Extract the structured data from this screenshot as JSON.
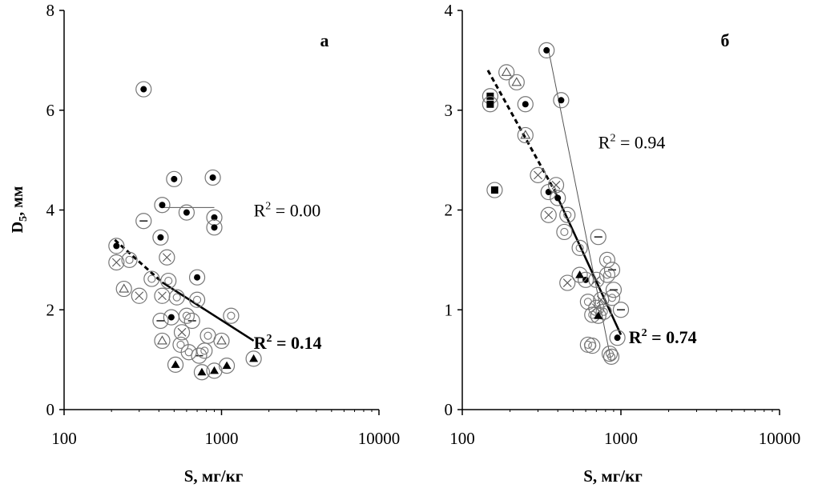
{
  "figure": {
    "ylabel_main": "D",
    "ylabel_sub": "5",
    "ylabel_rest": ", мм"
  },
  "chart_data": [
    {
      "type": "scatter",
      "panel_label": "а",
      "xlabel": "S, мг/кг",
      "xscale": "log",
      "xlim": [
        100,
        10000
      ],
      "xticks": [
        "100",
        "1000",
        "10000"
      ],
      "xtick_values": [
        100,
        1000,
        10000
      ],
      "ylim": [
        0,
        8
      ],
      "yticks": [
        "0",
        "2",
        "4",
        "6",
        "8"
      ],
      "ytick_values": [
        0,
        2,
        4,
        6,
        8
      ],
      "series": [
        {
          "marker": "dot",
          "points": [
            [
              320,
              6.42
            ],
            [
              500,
              4.62
            ],
            [
              880,
              4.65
            ],
            [
              420,
              4.1
            ],
            [
              600,
              3.95
            ],
            [
              900,
              3.85
            ],
            [
              900,
              3.65
            ],
            [
              410,
              3.45
            ],
            [
              700,
              2.65
            ],
            [
              480,
              1.85
            ],
            [
              215,
              3.28
            ]
          ]
        },
        {
          "marker": "minus",
          "points": [
            [
              320,
              3.78
            ],
            [
              410,
              1.78
            ],
            [
              650,
              1.78
            ],
            [
              720,
              1.08
            ]
          ]
        },
        {
          "marker": "x",
          "points": [
            [
              215,
              2.95
            ],
            [
              300,
              2.28
            ],
            [
              450,
              3.05
            ],
            [
              420,
              2.28
            ],
            [
              560,
              1.55
            ]
          ]
        },
        {
          "marker": "triangle",
          "points": [
            [
              240,
              2.42
            ],
            [
              420,
              1.38
            ],
            [
              1000,
              1.38
            ]
          ]
        },
        {
          "marker": "ring",
          "points": [
            [
              260,
              3.0
            ],
            [
              360,
              2.62
            ],
            [
              460,
              2.58
            ],
            [
              520,
              2.25
            ],
            [
              700,
              2.2
            ],
            [
              820,
              1.48
            ],
            [
              600,
              1.88
            ],
            [
              1150,
              1.88
            ],
            [
              550,
              1.3
            ],
            [
              620,
              1.15
            ],
            [
              780,
              1.18
            ]
          ]
        },
        {
          "marker": "filled-triangle",
          "points": [
            [
              510,
              0.9
            ],
            [
              750,
              0.75
            ],
            [
              900,
              0.78
            ],
            [
              1080,
              0.88
            ],
            [
              1600,
              1.02
            ]
          ]
        }
      ],
      "fits": [
        {
          "style": "dashed",
          "from": [
            210,
            3.4
          ],
          "to": [
            420,
            2.55
          ]
        },
        {
          "style": "solid",
          "from": [
            420,
            2.55
          ],
          "to": [
            1600,
            1.38
          ]
        },
        {
          "style": "thin",
          "from": [
            420,
            4.05
          ],
          "to": [
            900,
            4.05
          ]
        }
      ],
      "annotations": [
        {
          "base": "R",
          "sup": "2",
          "text": " = 0.00",
          "bold": false,
          "anchor": [
            1600,
            4.0
          ]
        },
        {
          "base": "R",
          "sup": "2",
          "text": " = 0.14",
          "bold": true,
          "anchor": [
            1600,
            1.35
          ]
        }
      ]
    },
    {
      "type": "scatter",
      "panel_label": "б",
      "xlabel": "S, мг/кг",
      "xscale": "log",
      "xlim": [
        100,
        10000
      ],
      "xticks": [
        "100",
        "1000",
        "10000"
      ],
      "xtick_values": [
        100,
        1000,
        10000
      ],
      "ylim": [
        0,
        4
      ],
      "yticks": [
        "0",
        "1",
        "2",
        "3",
        "4"
      ],
      "ytick_values": [
        0,
        1,
        2,
        3,
        4
      ],
      "series": [
        {
          "marker": "dot",
          "points": [
            [
              340,
              3.6
            ],
            [
              420,
              3.1
            ],
            [
              250,
              3.06
            ],
            [
              350,
              2.18
            ],
            [
              400,
              2.12
            ],
            [
              600,
              1.3
            ],
            [
              950,
              0.72
            ]
          ]
        },
        {
          "marker": "filled-square",
          "points": [
            [
              150,
              3.14
            ],
            [
              150,
              3.06
            ],
            [
              160,
              2.2
            ]
          ]
        },
        {
          "marker": "triangle",
          "points": [
            [
              190,
              3.38
            ],
            [
              220,
              3.28
            ],
            [
              250,
              2.75
            ]
          ]
        },
        {
          "marker": "x",
          "points": [
            [
              300,
              2.35
            ],
            [
              390,
              2.25
            ],
            [
              350,
              1.95
            ],
            [
              460,
              1.27
            ],
            [
              700,
              1.3
            ],
            [
              700,
              1.02
            ],
            [
              750,
              1.1
            ]
          ]
        },
        {
          "marker": "ring",
          "points": [
            [
              460,
              1.95
            ],
            [
              440,
              1.78
            ],
            [
              550,
              1.62
            ],
            [
              620,
              1.08
            ],
            [
              660,
              0.95
            ],
            [
              820,
              1.5
            ],
            [
              820,
              1.35
            ],
            [
              880,
              1.12
            ],
            [
              780,
              0.98
            ],
            [
              620,
              0.65
            ],
            [
              660,
              0.64
            ],
            [
              850,
              0.56
            ],
            [
              870,
              0.53
            ]
          ]
        },
        {
          "marker": "minus",
          "points": [
            [
              720,
              1.73
            ],
            [
              900,
              1.2
            ],
            [
              1000,
              1.0
            ],
            [
              880,
              1.4
            ]
          ]
        },
        {
          "marker": "filled-triangle",
          "points": [
            [
              550,
              1.35
            ],
            [
              720,
              0.94
            ]
          ]
        }
      ],
      "fits": [
        {
          "style": "dashed",
          "from": [
            145,
            3.4
          ],
          "to": [
            380,
            2.2
          ]
        },
        {
          "style": "solid",
          "from": [
            380,
            2.2
          ],
          "to": [
            1000,
            0.75
          ]
        },
        {
          "style": "thin",
          "from": [
            350,
            3.6
          ],
          "to": [
            870,
            0.48
          ]
        }
      ],
      "annotations": [
        {
          "base": "R",
          "sup": "2",
          "text": " = 0.94",
          "bold": false,
          "anchor": [
            720,
            2.68
          ]
        },
        {
          "base": "R",
          "sup": "2",
          "text": " = 0.74",
          "bold": true,
          "anchor": [
            1120,
            0.73
          ]
        }
      ]
    }
  ]
}
